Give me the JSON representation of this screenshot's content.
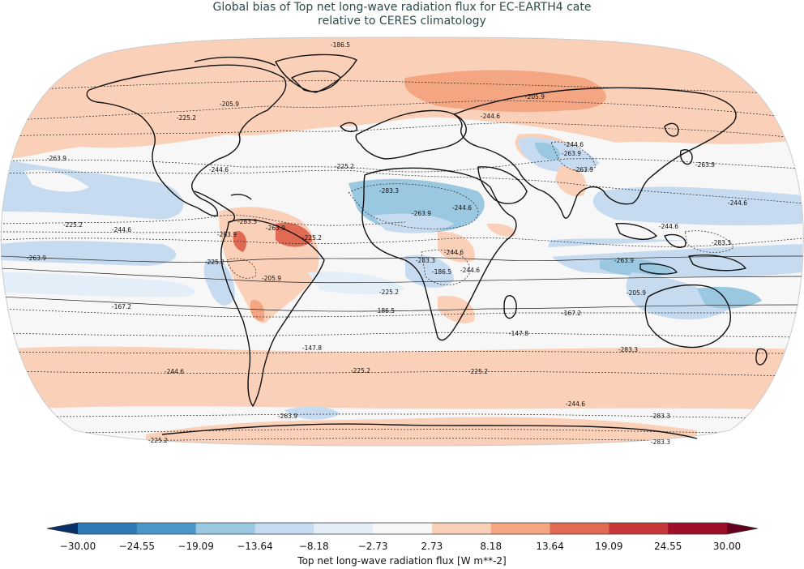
{
  "title": {
    "line1": "Global bias of Top net long-wave radiation flux for EC-EARTH4 cate",
    "line2": "relative to CERES climatology"
  },
  "map": {
    "projection": "Robinson",
    "field": "bias of top net long-wave radiation flux",
    "contour_labels": [
      "-186.5",
      "-205.9",
      "-205.9",
      "-225.2",
      "-244.6",
      "-263.9",
      "-244.6",
      "-225.2",
      "-244.6",
      "-263.9",
      "-283.3",
      "-263.9",
      "-263.9",
      "-244.6",
      "-263.9",
      "-244.6",
      "-225.2",
      "-283.3",
      "-244.6",
      "-263.9",
      "-225.2",
      "-244.6",
      "-283.3",
      "-263.9",
      "-263.9",
      "-244.6",
      "-283.3",
      "-263.9",
      "-244.6",
      "-225.2",
      "-205.9",
      "-205.9",
      "-225.2",
      "-186.5",
      "-186.5",
      "-167.2",
      "-167.2",
      "-147.8",
      "-147.8",
      "-283.3",
      "-225.2",
      "-225.2",
      "-244.6",
      "-244.6",
      "-263.9",
      "-283.3",
      "-225.2",
      "-283.3"
    ]
  },
  "colorbar": {
    "label": "Top net long-wave radiation flux [W m**-2]",
    "ticks": [
      "−30.00",
      "−24.55",
      "−19.09",
      "−13.64",
      "−8.18",
      "−2.73",
      "2.73",
      "8.18",
      "13.64",
      "19.09",
      "24.55",
      "30.00"
    ],
    "colors": [
      "#08306b",
      "#2f79b5",
      "#4a98c9",
      "#9ac8e0",
      "#c6dbef",
      "#e3eef8",
      "#f7f7f7",
      "#fbd0b9",
      "#f4a582",
      "#e16a55",
      "#c7383c",
      "#9e0f2a",
      "#67001f"
    ]
  }
}
